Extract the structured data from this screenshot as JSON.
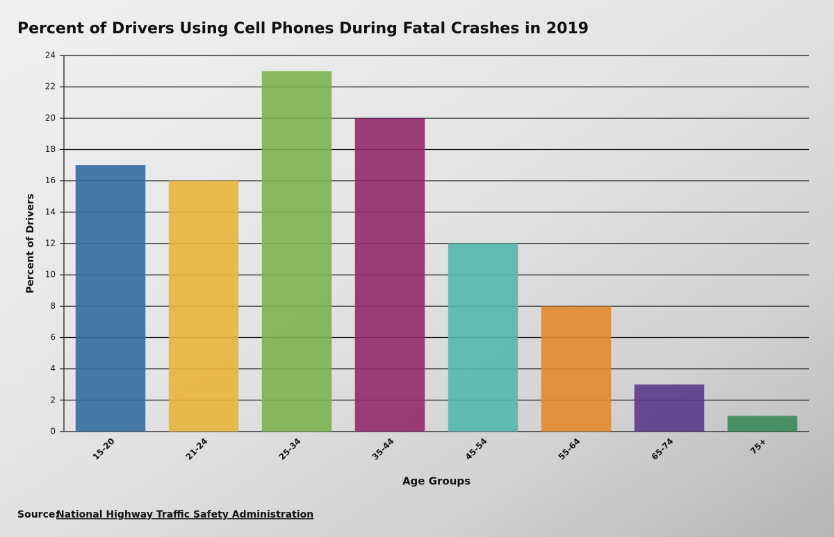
{
  "chart_data": {
    "type": "bar",
    "title": "Percent of Drivers Using Cell Phones During Fatal Crashes in 2019",
    "x_label": "Age Groups",
    "y_label": "Percent of Drivers",
    "categories": [
      "15-20",
      "21-24",
      "25-34",
      "35-44",
      "45-54",
      "55-64",
      "65-74",
      "75+"
    ],
    "values": [
      17,
      16,
      23,
      20,
      12,
      8,
      3,
      1
    ],
    "colors": [
      "#336aa0",
      "#e8b43e",
      "#7ab350",
      "#93296a",
      "#52b7ae",
      "#e2892a",
      "#5b3a8c",
      "#378a58"
    ],
    "ylim": [
      0,
      24
    ],
    "yticks": [
      0,
      2,
      4,
      6,
      8,
      10,
      12,
      14,
      16,
      18,
      20,
      22,
      24
    ],
    "grid": true,
    "source": {
      "label": "Source:",
      "link": "National Highway Traffic Safety Administration"
    }
  }
}
